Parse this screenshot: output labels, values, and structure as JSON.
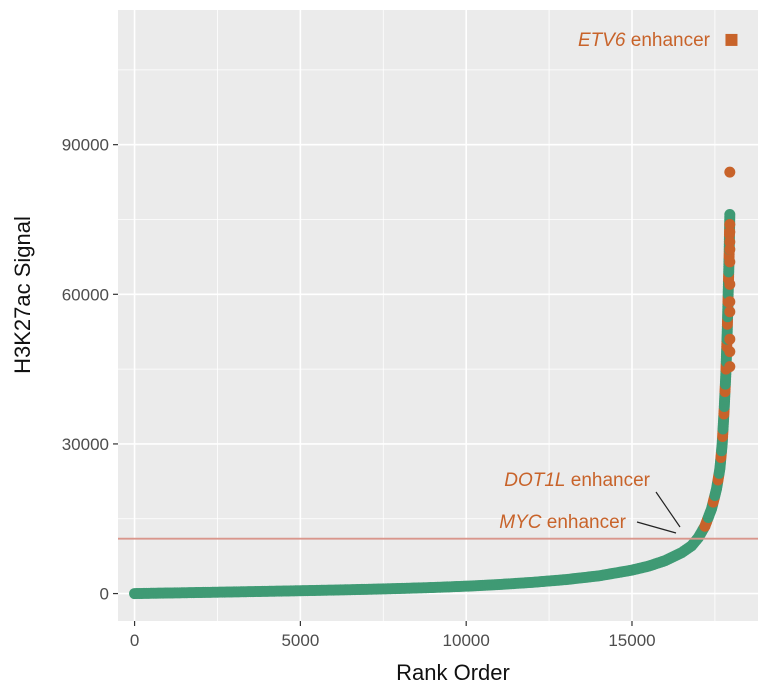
{
  "chart_data": {
    "type": "scatter",
    "title": "",
    "xlabel": "Rank Order",
    "ylabel": "H3K27ac Signal",
    "xlim": [
      -500,
      18800
    ],
    "ylim": [
      -5500,
      117000
    ],
    "x_ticks": [
      0,
      5000,
      10000,
      15000
    ],
    "y_ticks": [
      0,
      30000,
      60000,
      90000
    ],
    "x_tick_labels": [
      "0",
      "5000",
      "10000",
      "15000"
    ],
    "y_tick_labels": [
      "0",
      "30000",
      "60000",
      "90000"
    ],
    "grid": true,
    "cutoff_line": 11000,
    "colors": {
      "panel": "#ebebeb",
      "grid": "#ffffff",
      "regular": "#3f9a74",
      "super_enhancer": "#c8632a",
      "cutoff": "#d9968c"
    },
    "curve": [
      [
        0,
        0
      ],
      [
        1000,
        110
      ],
      [
        2000,
        220
      ],
      [
        3000,
        330
      ],
      [
        4000,
        450
      ],
      [
        5000,
        570
      ],
      [
        6000,
        700
      ],
      [
        7000,
        850
      ],
      [
        8000,
        1020
      ],
      [
        9000,
        1220
      ],
      [
        10000,
        1480
      ],
      [
        11000,
        1820
      ],
      [
        12000,
        2250
      ],
      [
        13000,
        2800
      ],
      [
        14000,
        3550
      ],
      [
        15000,
        4700
      ],
      [
        15500,
        5500
      ],
      [
        16000,
        6600
      ],
      [
        16500,
        8200
      ],
      [
        16800,
        9600
      ],
      [
        17000,
        11200
      ],
      [
        17200,
        13500
      ],
      [
        17400,
        17000
      ],
      [
        17550,
        21000
      ],
      [
        17650,
        25000
      ],
      [
        17720,
        30000
      ],
      [
        17780,
        37000
      ],
      [
        17830,
        44000
      ],
      [
        17870,
        52000
      ],
      [
        17900,
        60000
      ],
      [
        17930,
        68000
      ],
      [
        17950,
        76000
      ]
    ],
    "highlighted_points": [
      {
        "x": 17950,
        "y": 84500
      },
      {
        "x": 17950,
        "y": 74000
      },
      {
        "x": 17950,
        "y": 72500
      },
      {
        "x": 17950,
        "y": 70500
      },
      {
        "x": 17950,
        "y": 69000
      },
      {
        "x": 17950,
        "y": 66500
      },
      {
        "x": 17950,
        "y": 62000
      },
      {
        "x": 17950,
        "y": 58500
      },
      {
        "x": 17950,
        "y": 56500
      },
      {
        "x": 17950,
        "y": 51000
      },
      {
        "x": 17950,
        "y": 48500
      },
      {
        "x": 17950,
        "y": 45500
      }
    ],
    "top_point": {
      "x": 18000,
      "y": 111000
    },
    "annotations": [
      {
        "italic": "ETV6",
        "text": " enhancer"
      },
      {
        "italic": "DOT1L",
        "text": " enhancer"
      },
      {
        "italic": "MYC",
        "text": " enhancer"
      }
    ]
  }
}
